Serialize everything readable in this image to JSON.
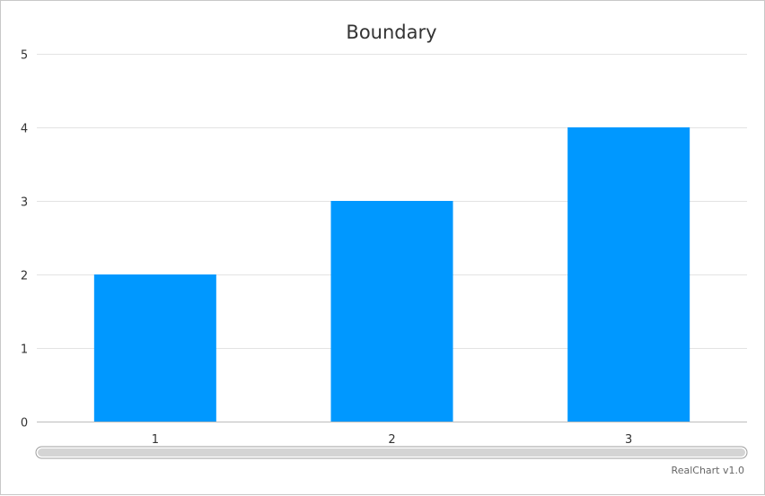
{
  "chart_data": {
    "type": "bar",
    "title": "Boundary",
    "x": [
      1,
      2,
      3
    ],
    "categories": [
      "1",
      "2",
      "3"
    ],
    "values": [
      2,
      3,
      4
    ],
    "ylim": [
      0,
      5
    ],
    "xlim": [
      0.5,
      3.5
    ],
    "yticks": [
      "0",
      "1",
      "2",
      "3",
      "4",
      "5"
    ],
    "grid": true,
    "bar_color": "#0098ff",
    "xlabel": "",
    "ylabel": ""
  },
  "scrollbar": {
    "present": true
  },
  "credit": "RealChart v1.0"
}
